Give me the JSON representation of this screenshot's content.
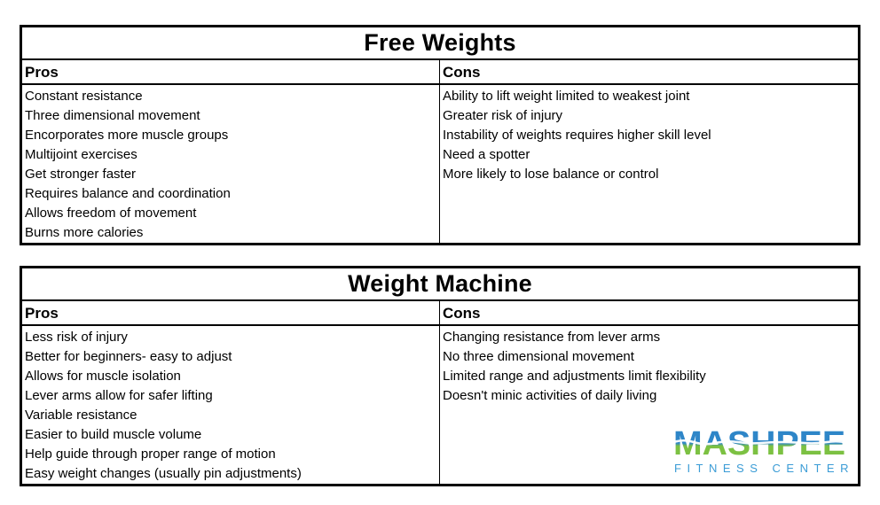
{
  "page": {
    "background_color": "#ffffff",
    "text_color": "#000000",
    "border_color": "#000000"
  },
  "tables": [
    {
      "title": "Free Weights",
      "pros": {
        "header": "Pros",
        "items": [
          "Constant resistance",
          "Three dimensional movement",
          "Encorporates more muscle groups",
          "Multijoint exercises",
          "Get stronger faster",
          "Requires balance and coordination",
          "Allows freedom of movement",
          "Burns more calories"
        ]
      },
      "cons": {
        "header": "Cons",
        "items": [
          "Ability to lift weight limited to weakest joint",
          "Greater risk of injury",
          "Instability of weights requires higher skill level",
          "Need a spotter",
          "More likely to lose balance or control"
        ]
      }
    },
    {
      "title": "Weight Machine",
      "pros": {
        "header": "Pros",
        "items": [
          "Less risk of injury",
          "Better for beginners- easy to adjust",
          "Allows for muscle isolation",
          "Lever arms allow for safer lifting",
          "Variable resistance",
          "Easier to build muscle volume",
          "Help guide through proper range of motion",
          "Easy weight changes (usually pin adjustments)"
        ]
      },
      "cons": {
        "header": "Cons",
        "items": [
          "Changing resistance from lever arms",
          "No three dimensional movement",
          "Limited range and adjustments limit flexibility",
          "Doesn't minic activities of daily living"
        ]
      }
    }
  ],
  "logo": {
    "brand": "MASHPEE",
    "tagline": "FITNESS CENTER",
    "colors": {
      "brand_blue": "#2e86c8",
      "brand_green": "#7cc142",
      "tagline_blue": "#3b9cd6"
    }
  }
}
